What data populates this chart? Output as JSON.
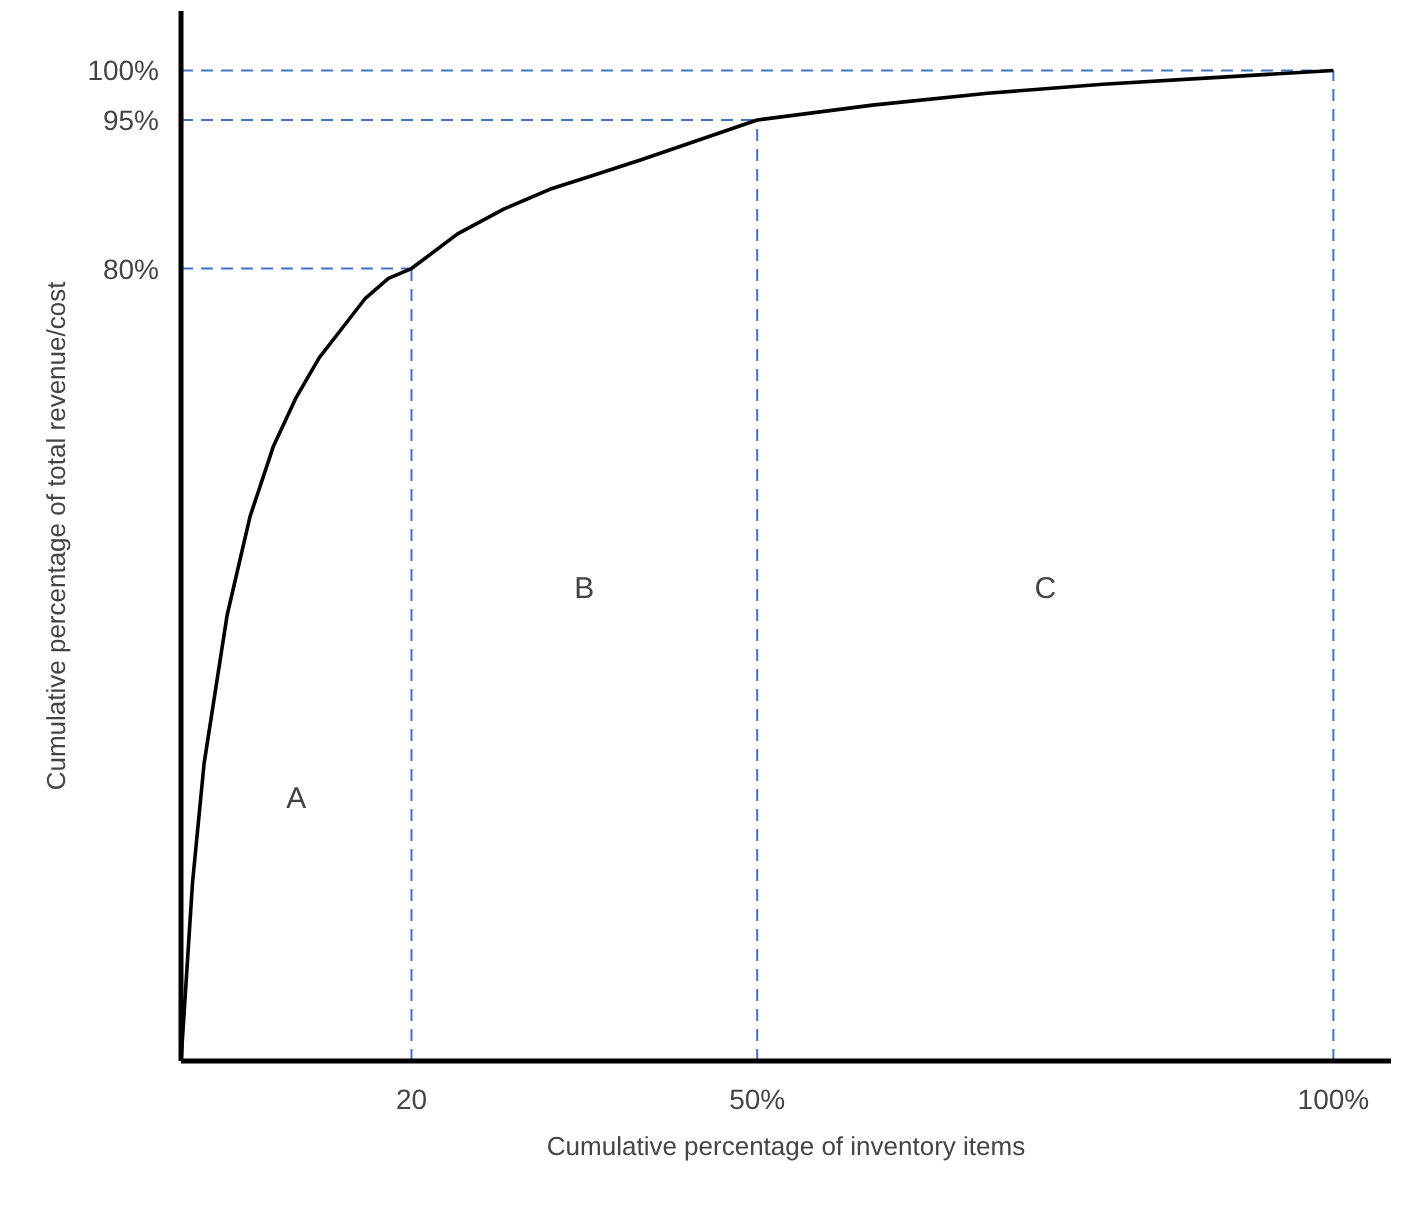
{
  "chart_data": {
    "type": "line",
    "xlabel": "Cumulative percentage of inventory items",
    "ylabel": "Cumulative percentage of total revenue/cost",
    "x": [
      0,
      1,
      2,
      4,
      6,
      8,
      10,
      12,
      14,
      16,
      18,
      20,
      24,
      28,
      32,
      36,
      40,
      45,
      50,
      60,
      70,
      80,
      90,
      100
    ],
    "series": [
      {
        "color": "#000000",
        "values": [
          0,
          18,
          30,
          45,
          55,
          62,
          67,
          71,
          74,
          77,
          79,
          80,
          83.5,
          86,
          88,
          89.5,
          91,
          93,
          95,
          96.5,
          97.7,
          98.6,
          99.3,
          100
        ]
      }
    ],
    "xlim": [
      0,
      105
    ],
    "ylim": [
      0,
      106
    ],
    "xticks": [
      {
        "value": 20,
        "label": "20"
      },
      {
        "value": 50,
        "label": "50%"
      },
      {
        "value": 100,
        "label": "100%"
      }
    ],
    "yticks": [
      {
        "value": 80,
        "label": "80%"
      },
      {
        "value": 95,
        "label": "95%"
      },
      {
        "value": 100,
        "label": "100%"
      }
    ],
    "ref_lines": [
      {
        "axis": "x",
        "value": 20,
        "color": "#4472c4",
        "line_style": "dashed"
      },
      {
        "axis": "x",
        "value": 50,
        "color": "#4472c4",
        "line_style": "dashed"
      },
      {
        "axis": "x",
        "value": 100,
        "color": "#4472c4",
        "line_style": "dashed"
      },
      {
        "axis": "y",
        "value": 80,
        "color": "#4472c4",
        "line_style": "dashed"
      },
      {
        "axis": "y",
        "value": 95,
        "color": "#4472c4",
        "line_style": "dashed"
      },
      {
        "axis": "y",
        "value": 100,
        "color": "#4472c4",
        "line_style": "dashed"
      }
    ],
    "annotations": [
      "A",
      "B",
      "C"
    ],
    "grid": false,
    "marker": "none",
    "line_style": "solid"
  }
}
